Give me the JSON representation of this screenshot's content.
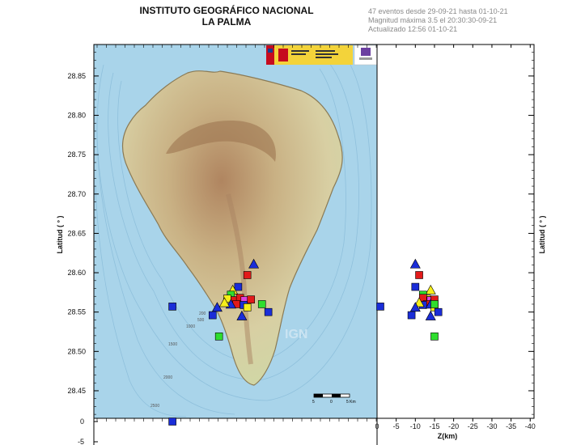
{
  "header": {
    "institute": "INSTITUTO GEOGRÁFICO NACIONAL",
    "region": "LA PALMA",
    "summary_line1": "47 eventos desde 29-09-21 hasta 01-10-21",
    "summary_line2": "Magnitud máxima 3.5 el 20:30:30-09-21",
    "summary_line3": "Actualizado   12:56  01-10-21"
  },
  "axes": {
    "y_label": "Latitud ( ° )",
    "y_label_right": "Latitud ( ° )",
    "z_label": "Z(km)",
    "lat_ticks": [
      "28.85",
      "28.80",
      "28.75",
      "28.70",
      "28.65",
      "28.60",
      "28.55",
      "28.50",
      "28.45"
    ],
    "depth_ticks": [
      "0",
      "-5"
    ],
    "z_ticks": [
      "0",
      "-5",
      "-10",
      "-15",
      "-20",
      "-25",
      "-30",
      "-35",
      "-40"
    ]
  },
  "map": {
    "watermark": "IGN",
    "contours": [
      "200",
      "500",
      "1000",
      "1500",
      "2000",
      "2500"
    ],
    "scale_labels": [
      "5",
      "0",
      "5 Km"
    ]
  },
  "colors": {
    "sea": "#a9d4ea",
    "land": "#d9cfa7",
    "marker_blue": "#1a2dd8",
    "marker_red": "#e21a1a",
    "marker_green": "#2ede2e",
    "marker_yellow": "#f5ee1a",
    "marker_magenta": "#e040e0"
  },
  "chart_data": {
    "type": "scatter",
    "xlabel": "Z(km)",
    "ylabel": "Latitud ( ° )",
    "lat_range": [
      28.415,
      28.89
    ],
    "lon_range": [
      -18.03,
      -17.72
    ],
    "depth_range": [
      0,
      -41
    ],
    "events": [
      {
        "lon": -17.944,
        "lat": 28.557,
        "z": 0.5,
        "shape": "square",
        "color": "blue"
      },
      {
        "lon": -17.855,
        "lat": 28.611,
        "z": -10,
        "shape": "triangle",
        "color": "blue"
      },
      {
        "lon": -17.862,
        "lat": 28.597,
        "z": -11,
        "shape": "square",
        "color": "red"
      },
      {
        "lon": -17.872,
        "lat": 28.582,
        "z": -10,
        "shape": "square",
        "color": "blue"
      },
      {
        "lon": -17.878,
        "lat": 28.578,
        "z": -14,
        "shape": "triangle",
        "color": "yellow"
      },
      {
        "lon": -17.88,
        "lat": 28.572,
        "z": -12,
        "shape": "square",
        "color": "green"
      },
      {
        "lon": -17.884,
        "lat": 28.567,
        "z": -13,
        "shape": "square",
        "color": "yellow"
      },
      {
        "lon": -17.876,
        "lat": 28.565,
        "z": -13,
        "shape": "square",
        "color": "red"
      },
      {
        "lon": -17.87,
        "lat": 28.568,
        "z": -12,
        "shape": "square",
        "color": "red"
      },
      {
        "lon": -17.865,
        "lat": 28.565,
        "z": -14,
        "shape": "square",
        "color": "magenta"
      },
      {
        "lon": -17.858,
        "lat": 28.566,
        "z": -15,
        "shape": "square",
        "color": "red"
      },
      {
        "lon": -17.874,
        "lat": 28.56,
        "z": -13,
        "shape": "square",
        "color": "red"
      },
      {
        "lon": -17.866,
        "lat": 28.559,
        "z": -12,
        "shape": "square",
        "color": "blue"
      },
      {
        "lon": -17.88,
        "lat": 28.56,
        "z": -14,
        "shape": "triangle",
        "color": "blue"
      },
      {
        "lon": -17.887,
        "lat": 28.562,
        "z": -11,
        "shape": "triangle",
        "color": "yellow"
      },
      {
        "lon": -17.862,
        "lat": 28.556,
        "z": -15,
        "shape": "square",
        "color": "yellow"
      },
      {
        "lon": -17.868,
        "lat": 28.545,
        "z": -14,
        "shape": "triangle",
        "color": "blue"
      },
      {
        "lon": -17.846,
        "lat": 28.56,
        "z": -15,
        "shape": "square",
        "color": "green"
      },
      {
        "lon": -17.839,
        "lat": 28.55,
        "z": -16,
        "shape": "square",
        "color": "blue"
      },
      {
        "lon": -17.895,
        "lat": 28.556,
        "z": -10,
        "shape": "triangle",
        "color": "blue"
      },
      {
        "lon": -17.9,
        "lat": 28.546,
        "z": -9,
        "shape": "square",
        "color": "blue"
      },
      {
        "lon": -17.893,
        "lat": 28.519,
        "z": -15,
        "shape": "square",
        "color": "green"
      },
      {
        "lon": -17.944,
        "lat": 28.414,
        "z": 0,
        "shape": "square",
        "color": "blue"
      }
    ]
  }
}
